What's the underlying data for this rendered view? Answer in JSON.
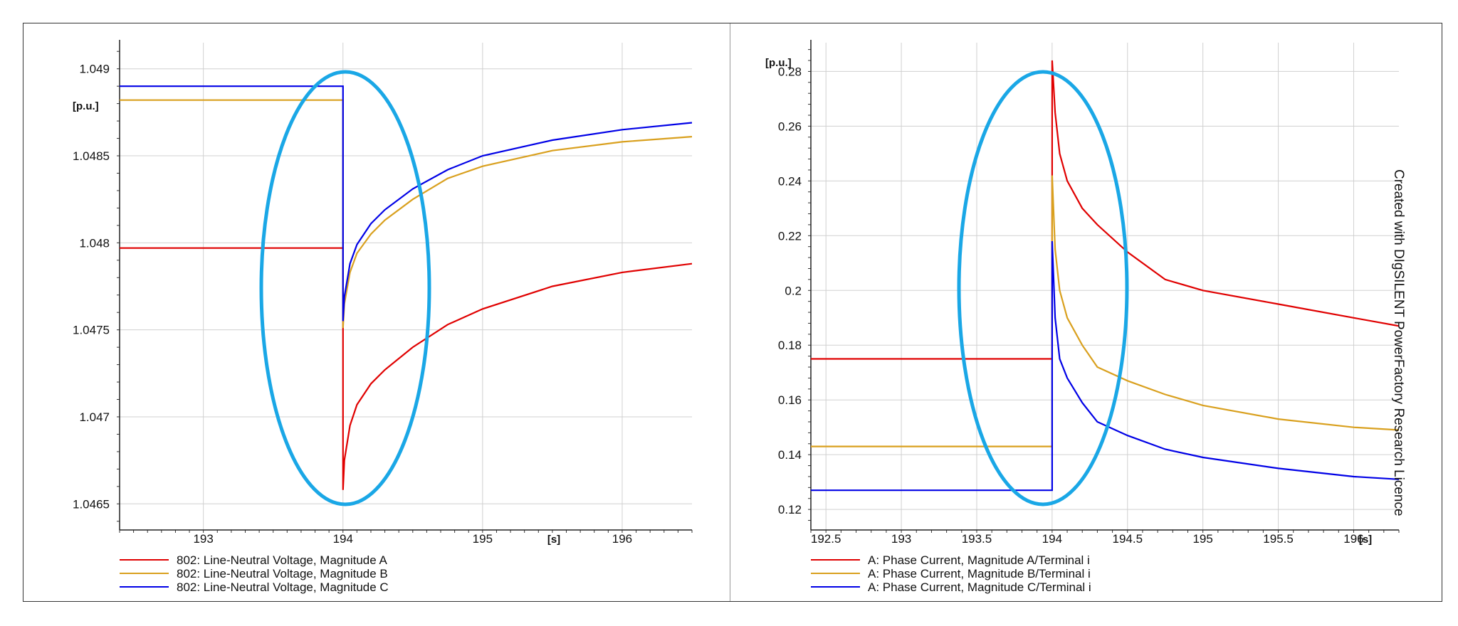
{
  "chart_data": [
    {
      "type": "line",
      "xlabel": "[s]",
      "ylabel": "[p.u.]",
      "xlim": [
        192.4,
        196.5
      ],
      "ylim": [
        1.04635,
        1.04915
      ],
      "xticks": [
        193,
        194,
        195,
        196
      ],
      "xtick_labels": [
        "193",
        "194",
        "195",
        "196"
      ],
      "yticks": [
        1.0465,
        1.047,
        1.0475,
        1.048,
        1.0485,
        1.049
      ],
      "ytick_labels": [
        "1.0465",
        "1.047",
        "1.0475",
        "1.048",
        "1.0485",
        "1.049"
      ],
      "grid": true,
      "legend_position": "bottom",
      "series": [
        {
          "name": "802: Line-Neutral Voltage, Magnitude A",
          "color": "#e00000",
          "x": [
            192.4,
            193.999,
            194.0,
            194.0,
            194.01,
            194.05,
            194.1,
            194.2,
            194.3,
            194.5,
            194.75,
            195.0,
            195.5,
            196.0,
            196.5
          ],
          "y": [
            1.04797,
            1.04797,
            1.04797,
            1.04658,
            1.04675,
            1.04695,
            1.04707,
            1.04719,
            1.04727,
            1.0474,
            1.04753,
            1.04762,
            1.04775,
            1.04783,
            1.04788
          ]
        },
        {
          "name": "802: Line-Neutral Voltage, Magnitude B",
          "color": "#d9a01e",
          "x": [
            192.4,
            193.999,
            194.0,
            194.0,
            194.01,
            194.05,
            194.1,
            194.2,
            194.3,
            194.5,
            194.75,
            195.0,
            195.5,
            196.0,
            196.5
          ],
          "y": [
            1.04882,
            1.04882,
            1.04882,
            1.04751,
            1.04765,
            1.04783,
            1.04794,
            1.04805,
            1.04813,
            1.04825,
            1.04837,
            1.04844,
            1.04853,
            1.04858,
            1.04861
          ]
        },
        {
          "name": "802: Line-Neutral Voltage, Magnitude C",
          "color": "#0000e6",
          "x": [
            192.4,
            193.999,
            194.0,
            194.0,
            194.01,
            194.05,
            194.1,
            194.2,
            194.3,
            194.5,
            194.75,
            195.0,
            195.5,
            196.0,
            196.5
          ],
          "y": [
            1.0489,
            1.0489,
            1.0489,
            1.04755,
            1.04769,
            1.04788,
            1.04799,
            1.04811,
            1.04819,
            1.04831,
            1.04842,
            1.0485,
            1.04859,
            1.04865,
            1.04869
          ]
        }
      ]
    },
    {
      "type": "line",
      "xlabel": "[s]",
      "ylabel": "[p.u.]",
      "xlim": [
        192.4,
        196.3
      ],
      "ylim": [
        0.1125,
        0.2905
      ],
      "xticks": [
        192.5,
        193,
        193.5,
        194,
        194.5,
        195,
        195.5,
        196
      ],
      "xtick_labels": [
        "192.5",
        "193",
        "193.5",
        "194",
        "194.5",
        "195",
        "195.5",
        "196"
      ],
      "yticks": [
        0.12,
        0.14,
        0.16,
        0.18,
        0.2,
        0.22,
        0.24,
        0.26,
        0.28
      ],
      "ytick_labels": [
        "0.12",
        "0.14",
        "0.16",
        "0.18",
        "0.2",
        "0.22",
        "0.24",
        "0.26",
        "0.28"
      ],
      "grid": true,
      "legend_position": "bottom",
      "series": [
        {
          "name": "A: Phase Current, Magnitude A/Terminal i",
          "color": "#e00000",
          "x": [
            192.4,
            193.999,
            194.0,
            194.0,
            194.02,
            194.05,
            194.1,
            194.2,
            194.3,
            194.5,
            194.75,
            195.0,
            195.5,
            196.0,
            196.3
          ],
          "y": [
            0.175,
            0.175,
            0.175,
            0.284,
            0.265,
            0.25,
            0.24,
            0.23,
            0.224,
            0.214,
            0.204,
            0.2,
            0.195,
            0.19,
            0.187
          ]
        },
        {
          "name": "A: Phase Current, Magnitude B/Terminal i",
          "color": "#d9a01e",
          "x": [
            192.4,
            193.999,
            194.0,
            194.0,
            194.02,
            194.05,
            194.1,
            194.2,
            194.3,
            194.5,
            194.75,
            195.0,
            195.5,
            196.0,
            196.3
          ],
          "y": [
            0.143,
            0.143,
            0.143,
            0.242,
            0.215,
            0.2,
            0.19,
            0.18,
            0.172,
            0.167,
            0.162,
            0.158,
            0.153,
            0.15,
            0.149
          ]
        },
        {
          "name": "A: Phase Current, Magnitude C/Terminal i",
          "color": "#0000e6",
          "x": [
            192.4,
            193.999,
            194.0,
            194.0,
            194.02,
            194.05,
            194.1,
            194.2,
            194.3,
            194.5,
            194.75,
            195.0,
            195.5,
            196.0,
            196.3
          ],
          "y": [
            0.127,
            0.127,
            0.127,
            0.218,
            0.19,
            0.175,
            0.168,
            0.159,
            0.152,
            0.147,
            0.142,
            0.139,
            0.135,
            0.132,
            0.131
          ]
        }
      ]
    }
  ],
  "side_text": "Created with DIgSILENT PowerFactory Research Licence",
  "highlight_color": "#1aa7e6"
}
